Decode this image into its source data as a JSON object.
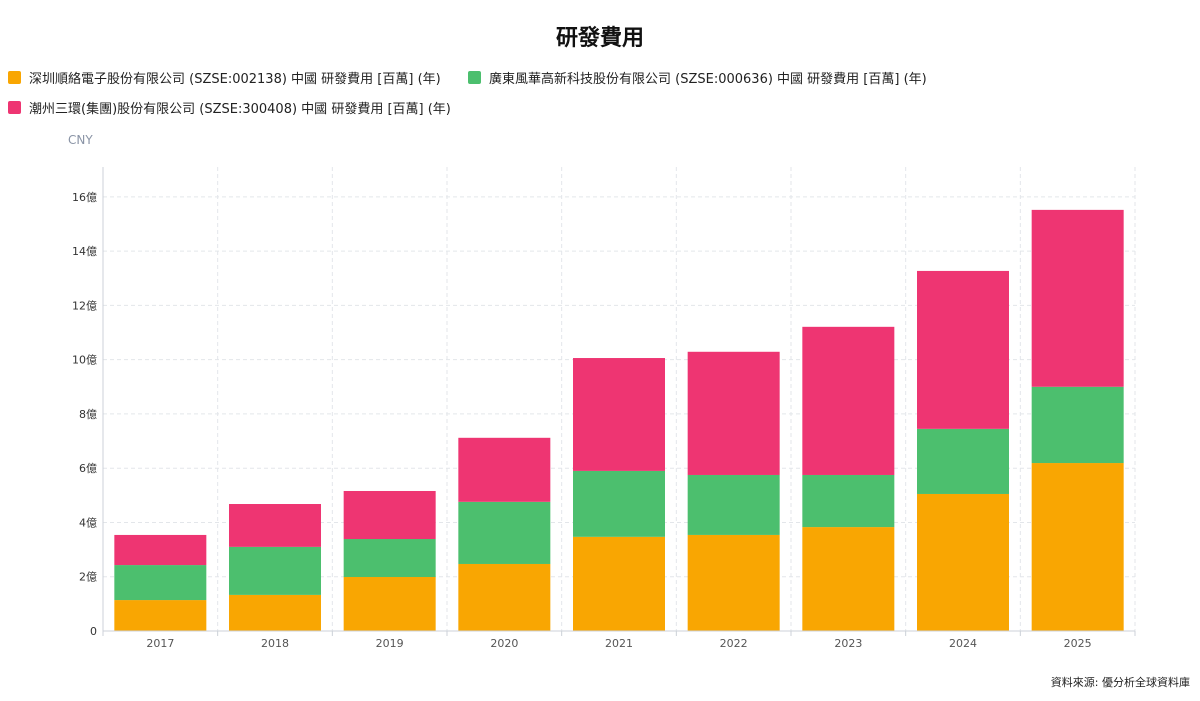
{
  "chart_data": {
    "type": "bar",
    "stacked": true,
    "title": "研發費用",
    "unit_label": "CNY",
    "source": "資料來源: 優分析全球資料庫",
    "categories": [
      "2017",
      "2018",
      "2019",
      "2020",
      "2021",
      "2022",
      "2023",
      "2024",
      "2025"
    ],
    "y_tick_labels": [
      "0",
      "2億",
      "4億",
      "6億",
      "8億",
      "10億",
      "12億",
      "14億",
      "16億"
    ],
    "y_ticks": [
      0,
      2,
      4,
      6,
      8,
      10,
      12,
      14,
      16
    ],
    "ylim": [
      0,
      17.1
    ],
    "y_unit": "億",
    "grid": true,
    "legend_position": "top-left",
    "series": [
      {
        "name": "深圳順絡電子股份有限公司 (SZSE:002138) 中國 研發費用 [百萬] (年)",
        "color": "#f9a602",
        "values": [
          1.14,
          1.33,
          1.99,
          2.47,
          3.47,
          3.54,
          3.83,
          5.05,
          6.19
        ]
      },
      {
        "name": "廣東風華高新科技股份有限公司 (SZSE:000636) 中國 研發費用 [百萬] (年)",
        "color": "#4cbf6e",
        "values": [
          1.29,
          1.77,
          1.4,
          2.29,
          2.43,
          2.21,
          1.92,
          2.4,
          2.81
        ]
      },
      {
        "name": "潮州三環(集團)股份有限公司 (SZSE:300408) 中國 研發費用 [百萬] (年)",
        "color": "#ee3572",
        "values": [
          1.11,
          1.58,
          1.77,
          2.36,
          4.16,
          4.54,
          5.46,
          5.82,
          6.52
        ]
      }
    ]
  }
}
